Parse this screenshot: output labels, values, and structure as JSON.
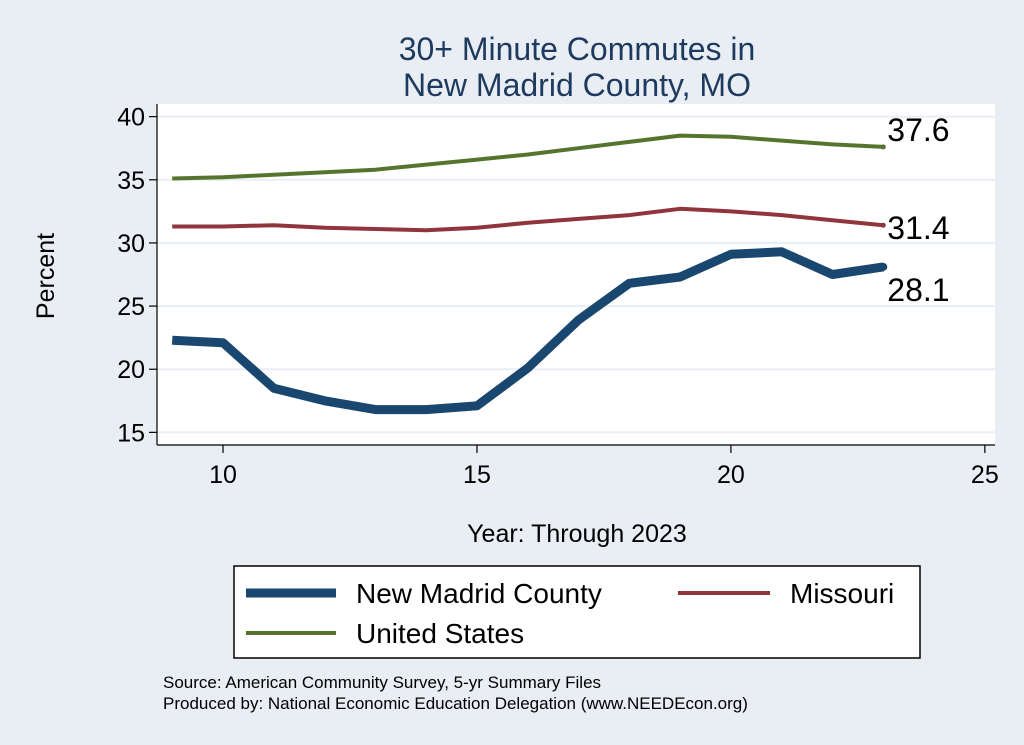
{
  "chart_data": {
    "type": "line",
    "title_lines": [
      "30+ Minute Commutes in",
      "New Madrid County, MO"
    ],
    "xlabel": "Year: Through 2023",
    "ylabel": "Percent",
    "xlim": [
      8.7,
      25.2
    ],
    "ylim": [
      14,
      41
    ],
    "x_ticks": [
      10,
      15,
      20,
      25
    ],
    "y_ticks": [
      15,
      20,
      25,
      30,
      35,
      40
    ],
    "grid": true,
    "x": [
      9,
      10,
      11,
      12,
      13,
      14,
      15,
      16,
      17,
      18,
      19,
      20,
      21,
      22,
      23
    ],
    "series": [
      {
        "key": "county",
        "name": "New Madrid County",
        "color": "#1a476f",
        "values": [
          22.3,
          22.1,
          18.5,
          17.5,
          16.8,
          16.8,
          17.1,
          20.1,
          23.9,
          26.8,
          27.3,
          29.1,
          29.3,
          27.5,
          28.1
        ],
        "end_label": "28.1"
      },
      {
        "key": "missouri",
        "name": "Missouri",
        "color": "#90353b",
        "values": [
          31.3,
          31.3,
          31.4,
          31.2,
          31.1,
          31.0,
          31.2,
          31.6,
          31.9,
          32.2,
          32.7,
          32.5,
          32.2,
          31.8,
          31.4
        ],
        "end_label": "31.4"
      },
      {
        "key": "us",
        "name": "United States",
        "color": "#55752f",
        "values": [
          35.1,
          35.2,
          35.4,
          35.6,
          35.8,
          36.2,
          36.6,
          37.0,
          37.5,
          38.0,
          38.5,
          38.4,
          38.1,
          37.8,
          37.6
        ],
        "end_label": "37.6"
      }
    ],
    "legend": {
      "placement": "bottom",
      "items": [
        {
          "label": "New Madrid County",
          "series": "county"
        },
        {
          "label": "Missouri",
          "series": "missouri"
        },
        {
          "label": "United States",
          "series": "us"
        }
      ]
    },
    "notes": [
      "Source: American Community Survey, 5-yr Summary Files",
      "Produced by: National Economic Education Delegation (www.NEEDEcon.org)"
    ]
  }
}
